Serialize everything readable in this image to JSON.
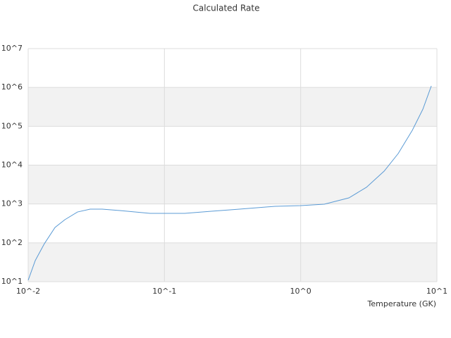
{
  "chart_data": {
    "type": "line",
    "title": "Calculated Rate",
    "x_label": "Temperature (GK)",
    "xscale": "log",
    "yscale": "log",
    "grid": true,
    "xlim": [
      0.01,
      10
    ],
    "ylim": [
      10,
      10000000
    ],
    "xticks": [
      {
        "value": 0.01,
        "label": "10^-2"
      },
      {
        "value": 0.1,
        "label": "10^-1"
      },
      {
        "value": 1,
        "label": "10^0"
      },
      {
        "value": 10,
        "label": "10^1"
      }
    ],
    "yticks": [
      {
        "value": 10,
        "label": "10^1"
      },
      {
        "value": 100,
        "label": "10^2"
      },
      {
        "value": 1000,
        "label": "10^3"
      },
      {
        "value": 10000,
        "label": "10^4"
      },
      {
        "value": 100000,
        "label": "10^5"
      },
      {
        "value": 1000000,
        "label": "10^6"
      },
      {
        "value": 10000000,
        "label": "10^7"
      }
    ],
    "x": [
      0.01,
      0.01127,
      0.01315,
      0.01574,
      0.01858,
      0.023,
      0.0285,
      0.0349,
      0.0471,
      0.0785,
      0.1407,
      0.221,
      0.356,
      0.647,
      1.0,
      1.49,
      2.26,
      3.04,
      4.1,
      5.2,
      6.6,
      7.89,
      9.1
    ],
    "series": [
      {
        "color": "#5b9bd5",
        "values": [
          10.9,
          35,
          95,
          249,
          394,
          622,
          736,
          736,
          677,
          573,
          573,
          650,
          736,
          870,
          908,
          986,
          1436,
          2690,
          7010,
          19900,
          78900,
          276000,
          1094000
        ]
      }
    ]
  }
}
